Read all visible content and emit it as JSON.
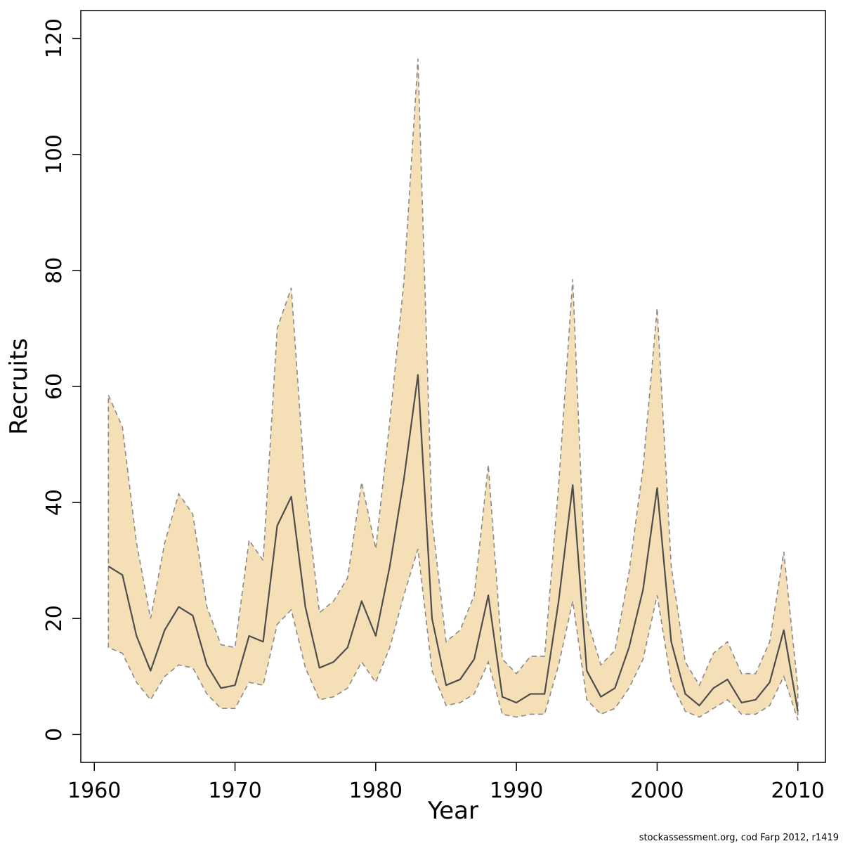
{
  "chart_data": {
    "type": "line",
    "title": "",
    "xlabel": "Year",
    "ylabel": "Recruits",
    "xlim": [
      1960,
      2010
    ],
    "ylim": [
      0,
      120
    ],
    "x_ticks": [
      1960,
      1970,
      1980,
      1990,
      2000,
      2010
    ],
    "y_ticks": [
      0,
      20,
      40,
      60,
      80,
      100,
      120
    ],
    "grid": false,
    "legend": "none",
    "band_fill": "#f5dfb6",
    "band_edge_color": "#8a8a8a",
    "band_edge_style": "dashed",
    "x": [
      1961,
      1962,
      1963,
      1964,
      1965,
      1966,
      1967,
      1968,
      1969,
      1970,
      1971,
      1972,
      1973,
      1974,
      1975,
      1976,
      1977,
      1978,
      1979,
      1980,
      1981,
      1982,
      1983,
      1984,
      1985,
      1986,
      1987,
      1988,
      1989,
      1990,
      1991,
      1992,
      1993,
      1994,
      1995,
      1996,
      1997,
      1998,
      1999,
      2000,
      2001,
      2002,
      2003,
      2004,
      2005,
      2006,
      2007,
      2008,
      2009,
      2010
    ],
    "series": [
      {
        "name": "median",
        "style": "solid",
        "color": "#4d4d4d",
        "values": [
          29,
          27.5,
          17,
          11,
          18,
          22,
          20.5,
          12,
          8,
          8.5,
          17,
          16,
          36,
          41,
          22,
          11.5,
          12.5,
          15,
          23,
          17,
          29,
          44,
          62,
          20,
          8.5,
          9.5,
          13,
          24,
          6.5,
          5.5,
          7,
          7,
          23,
          43,
          11,
          6.5,
          8,
          15,
          25,
          42.5,
          16,
          7,
          5,
          8,
          9.5,
          5.5,
          6,
          9,
          18,
          4
        ]
      },
      {
        "name": "upper-95ci",
        "style": "dashed",
        "color": "#8a8a8a",
        "values": [
          58.5,
          53,
          33,
          20,
          33,
          41.5,
          38,
          22,
          15.5,
          15,
          33.5,
          30,
          70,
          77,
          42,
          21,
          23,
          27,
          43.5,
          32,
          54,
          78,
          116.5,
          37,
          16,
          18,
          24,
          46.5,
          13,
          10.5,
          13.5,
          13.5,
          43,
          78.5,
          20,
          12,
          14.5,
          28,
          46,
          73.5,
          29,
          12.5,
          8.5,
          14,
          16,
          10.5,
          10.5,
          16,
          31.5,
          8
        ]
      },
      {
        "name": "lower-95ci",
        "style": "dashed",
        "color": "#8a8a8a",
        "values": [
          15,
          14,
          9,
          6,
          10,
          12,
          11.5,
          7,
          4.5,
          4.5,
          9,
          8.5,
          19,
          21.5,
          11.5,
          6,
          6.5,
          8,
          12.5,
          9,
          15,
          24,
          32,
          11,
          5,
          5.5,
          7,
          12.5,
          3.5,
          3,
          3.5,
          3.5,
          12,
          23,
          6,
          3.5,
          4.5,
          8,
          13,
          24,
          9,
          4,
          3,
          4.5,
          6,
          3.5,
          3.5,
          5,
          10,
          2.5
        ]
      }
    ]
  },
  "footer": {
    "watermark": "stockassessment.org, cod Farp 2012, r1419"
  }
}
